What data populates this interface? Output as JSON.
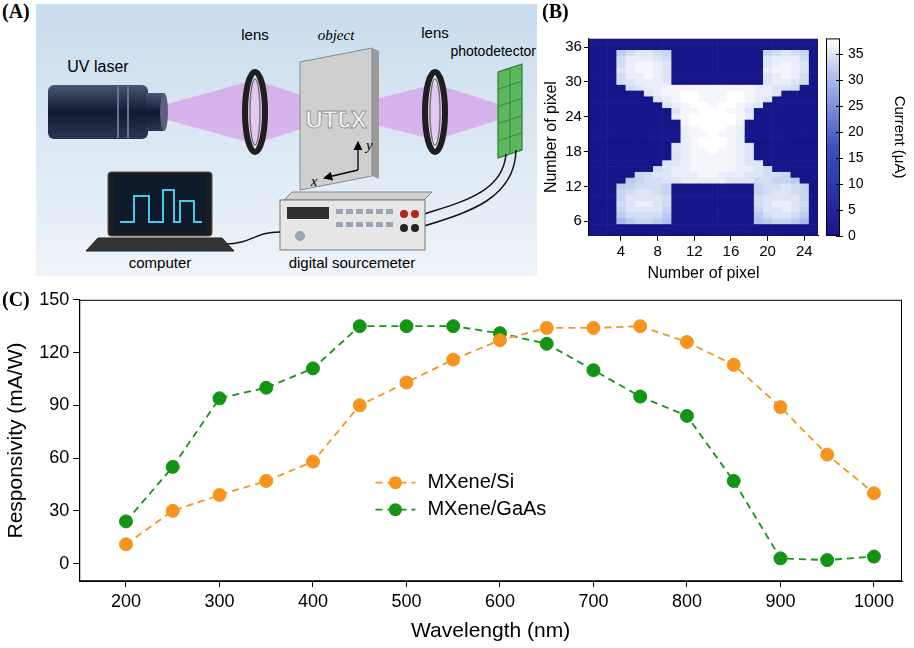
{
  "diagram": {
    "panel_label": "(A)",
    "labels": {
      "laser": "UV laser",
      "lens1": "lens",
      "object": "object",
      "object_text": "XJTU",
      "lens2": "lens",
      "detector": "photodetector",
      "computer": "computer",
      "meter": "digital sourcemeter",
      "x_axis": "x",
      "y_axis": "y"
    }
  },
  "chart_data": [
    {
      "type": "heatmap",
      "panel_label": "(B)",
      "xlabel": "Number of pixel",
      "ylabel": "Number of pixel",
      "xlim": [
        0.5,
        25.5
      ],
      "ylim": [
        3.5,
        37.5
      ],
      "xticks": [
        4,
        8,
        12,
        16,
        20,
        24
      ],
      "yticks": [
        6,
        12,
        18,
        24,
        30,
        36
      ],
      "colorbar_label": "Current (μA)",
      "colorbar_range": [
        0,
        38
      ],
      "colorbar_ticks": [
        0,
        5,
        10,
        15,
        20,
        25,
        30,
        35
      ],
      "x": [
        1,
        2,
        3,
        4,
        5,
        6,
        7,
        8,
        9,
        10,
        11,
        12,
        13,
        14,
        15,
        16,
        17,
        18,
        19,
        20,
        21,
        22,
        23,
        24,
        25
      ],
      "y": [
        37,
        36,
        35,
        34,
        33,
        32,
        31,
        30,
        29,
        28,
        27,
        26,
        25,
        24,
        23,
        22,
        21,
        20,
        19,
        18,
        17,
        16,
        15,
        14,
        13,
        12,
        11,
        10,
        9,
        8,
        7,
        6,
        5,
        4
      ],
      "z": [
        [
          0,
          0,
          0,
          0,
          0,
          0,
          0,
          0,
          0,
          0,
          0,
          0,
          0,
          0,
          0,
          0,
          0,
          0,
          0,
          0,
          0,
          0,
          0,
          0,
          0
        ],
        [
          0,
          0,
          0,
          0,
          0,
          0,
          0,
          0,
          0,
          0,
          0,
          0,
          0,
          0,
          0,
          0,
          0,
          0,
          0,
          0,
          0,
          0,
          0,
          0,
          0
        ],
        [
          0,
          0,
          0,
          32,
          34,
          35,
          35,
          34,
          33,
          0,
          0,
          0,
          0,
          0,
          0,
          0,
          0,
          0,
          0,
          33,
          34,
          35,
          34,
          33,
          0
        ],
        [
          0,
          0,
          0,
          34,
          36,
          36,
          36,
          35,
          34,
          0,
          0,
          0,
          0,
          0,
          0,
          0,
          0,
          0,
          0,
          35,
          36,
          36,
          36,
          34,
          0
        ],
        [
          0,
          0,
          0,
          34,
          36,
          37,
          37,
          36,
          35,
          0,
          0,
          0,
          0,
          0,
          0,
          0,
          0,
          0,
          0,
          35,
          36,
          37,
          36,
          35,
          0
        ],
        [
          0,
          0,
          0,
          35,
          36,
          37,
          37,
          36,
          35,
          0,
          0,
          0,
          0,
          0,
          0,
          0,
          0,
          0,
          0,
          36,
          37,
          37,
          36,
          35,
          0
        ],
        [
          0,
          0,
          0,
          34,
          36,
          36,
          37,
          36,
          35,
          0,
          0,
          0,
          0,
          0,
          0,
          0,
          0,
          0,
          0,
          35,
          36,
          37,
          36,
          34,
          0
        ],
        [
          0,
          0,
          0,
          34,
          35,
          36,
          36,
          36,
          35,
          0,
          0,
          0,
          0,
          0,
          0,
          0,
          0,
          0,
          0,
          35,
          36,
          36,
          35,
          34,
          0
        ],
        [
          0,
          0,
          0,
          0,
          34,
          35,
          36,
          36,
          37,
          37,
          37,
          37,
          37,
          37,
          37,
          37,
          37,
          37,
          36,
          36,
          35,
          35,
          34,
          0,
          0
        ],
        [
          0,
          0,
          0,
          0,
          0,
          0,
          35,
          36,
          37,
          37,
          38,
          38,
          37,
          37,
          37,
          38,
          38,
          37,
          36,
          36,
          35,
          0,
          0,
          0,
          0
        ],
        [
          0,
          0,
          0,
          0,
          0,
          0,
          0,
          35,
          36,
          37,
          38,
          38,
          37,
          37,
          37,
          38,
          38,
          37,
          36,
          35,
          0,
          0,
          0,
          0,
          0
        ],
        [
          0,
          0,
          0,
          0,
          0,
          0,
          0,
          0,
          35,
          36,
          37,
          38,
          38,
          37,
          38,
          38,
          37,
          36,
          35,
          0,
          0,
          0,
          0,
          0,
          0
        ],
        [
          0,
          0,
          0,
          0,
          0,
          0,
          0,
          0,
          0,
          35,
          37,
          37,
          38,
          38,
          38,
          37,
          37,
          35,
          0,
          0,
          0,
          0,
          0,
          0,
          0
        ],
        [
          0,
          0,
          0,
          0,
          0,
          0,
          0,
          0,
          0,
          36,
          37,
          38,
          38,
          38,
          38,
          38,
          37,
          36,
          0,
          0,
          0,
          0,
          0,
          0,
          0
        ],
        [
          0,
          0,
          0,
          0,
          0,
          0,
          0,
          0,
          0,
          0,
          37,
          38,
          38,
          38,
          38,
          38,
          37,
          0,
          0,
          0,
          0,
          0,
          0,
          0,
          0
        ],
        [
          0,
          0,
          0,
          0,
          0,
          0,
          0,
          0,
          0,
          0,
          36,
          37,
          38,
          38,
          38,
          37,
          36,
          0,
          0,
          0,
          0,
          0,
          0,
          0,
          0
        ],
        [
          0,
          0,
          0,
          0,
          0,
          0,
          0,
          0,
          0,
          0,
          36,
          37,
          37,
          38,
          37,
          37,
          36,
          0,
          0,
          0,
          0,
          0,
          0,
          0,
          0
        ],
        [
          0,
          0,
          0,
          0,
          0,
          0,
          0,
          0,
          0,
          0,
          36,
          37,
          38,
          38,
          38,
          37,
          36,
          0,
          0,
          0,
          0,
          0,
          0,
          0,
          0
        ],
        [
          0,
          0,
          0,
          0,
          0,
          0,
          0,
          0,
          0,
          35,
          36,
          37,
          38,
          38,
          38,
          37,
          36,
          35,
          0,
          0,
          0,
          0,
          0,
          0,
          0
        ],
        [
          0,
          0,
          0,
          0,
          0,
          0,
          0,
          0,
          0,
          35,
          36,
          37,
          37,
          38,
          37,
          37,
          36,
          35,
          0,
          0,
          0,
          0,
          0,
          0,
          0
        ],
        [
          0,
          0,
          0,
          0,
          0,
          0,
          0,
          0,
          0,
          35,
          36,
          37,
          37,
          37,
          37,
          37,
          36,
          35,
          0,
          0,
          0,
          0,
          0,
          0,
          0
        ],
        [
          0,
          0,
          0,
          0,
          0,
          0,
          0,
          0,
          35,
          35,
          36,
          37,
          37,
          37,
          37,
          37,
          36,
          35,
          35,
          0,
          0,
          0,
          0,
          0,
          0
        ],
        [
          0,
          0,
          0,
          0,
          0,
          0,
          0,
          34,
          35,
          36,
          36,
          37,
          37,
          37,
          37,
          37,
          36,
          36,
          35,
          34,
          0,
          0,
          0,
          0,
          0
        ],
        [
          0,
          0,
          0,
          0,
          0,
          33,
          34,
          35,
          35,
          36,
          36,
          36,
          37,
          37,
          36,
          36,
          36,
          35,
          35,
          34,
          34,
          33,
          0,
          0,
          0
        ],
        [
          0,
          0,
          0,
          0,
          32,
          33,
          34,
          34,
          35,
          35,
          36,
          36,
          36,
          36,
          36,
          35,
          35,
          35,
          34,
          34,
          33,
          33,
          32,
          0,
          0
        ],
        [
          0,
          0,
          0,
          32,
          33,
          34,
          34,
          34,
          33,
          0,
          0,
          0,
          0,
          0,
          0,
          0,
          0,
          0,
          33,
          34,
          34,
          35,
          34,
          33,
          0
        ],
        [
          0,
          0,
          0,
          33,
          34,
          35,
          35,
          34,
          33,
          0,
          0,
          0,
          0,
          0,
          0,
          0,
          0,
          0,
          33,
          34,
          35,
          35,
          34,
          33,
          0
        ],
        [
          0,
          0,
          0,
          33,
          35,
          35,
          35,
          35,
          34,
          0,
          0,
          0,
          0,
          0,
          0,
          0,
          0,
          0,
          34,
          35,
          35,
          35,
          35,
          33,
          0
        ],
        [
          0,
          0,
          0,
          34,
          35,
          36,
          36,
          35,
          34,
          0,
          0,
          0,
          0,
          0,
          0,
          0,
          0,
          0,
          34,
          35,
          36,
          36,
          35,
          34,
          0
        ],
        [
          0,
          0,
          0,
          33,
          35,
          35,
          35,
          35,
          33,
          0,
          0,
          0,
          0,
          0,
          0,
          0,
          0,
          0,
          33,
          35,
          35,
          36,
          35,
          33,
          0
        ],
        [
          0,
          0,
          0,
          32,
          34,
          34,
          34,
          34,
          32,
          0,
          0,
          0,
          0,
          0,
          0,
          0,
          0,
          0,
          32,
          34,
          35,
          35,
          34,
          32,
          0
        ],
        [
          0,
          0,
          0,
          30,
          32,
          33,
          33,
          32,
          31,
          0,
          0,
          0,
          0,
          0,
          0,
          0,
          0,
          0,
          31,
          32,
          33,
          33,
          32,
          30,
          0
        ],
        [
          0,
          0,
          0,
          0,
          0,
          0,
          0,
          0,
          0,
          0,
          0,
          0,
          0,
          0,
          0,
          0,
          0,
          0,
          0,
          0,
          0,
          0,
          0,
          0,
          0
        ],
        [
          0,
          0,
          0,
          0,
          0,
          0,
          0,
          0,
          0,
          0,
          0,
          0,
          0,
          0,
          0,
          0,
          0,
          0,
          0,
          0,
          0,
          0,
          0,
          0,
          0
        ]
      ]
    },
    {
      "type": "line",
      "panel_label": "(C)",
      "xlabel": "Wavelength (nm)",
      "ylabel": "Responsivity (mA/W)",
      "x": [
        200,
        250,
        300,
        350,
        400,
        450,
        500,
        550,
        600,
        650,
        700,
        750,
        800,
        850,
        900,
        950,
        1000
      ],
      "series": [
        {
          "name": "MXene/Si",
          "color": "#f7941d",
          "marker": "circle",
          "line_style": "dashed",
          "values": [
            11,
            30,
            39,
            47,
            58,
            90,
            103,
            116,
            127,
            134,
            134,
            135,
            126,
            113,
            89,
            62,
            40
          ]
        },
        {
          "name": "MXene/GaAs",
          "color": "#149414",
          "marker": "circle",
          "line_style": "dashed",
          "values": [
            24,
            55,
            94,
            100,
            111,
            135,
            135,
            135,
            131,
            125,
            110,
            95,
            84,
            47,
            3,
            2,
            4
          ]
        }
      ],
      "xlim": [
        150,
        1030
      ],
      "ylim": [
        -10,
        150
      ],
      "xticks": [
        200,
        300,
        400,
        500,
        600,
        700,
        800,
        900,
        1000
      ],
      "yticks": [
        0,
        30,
        60,
        90,
        120,
        150
      ],
      "legend": "lower center"
    }
  ]
}
